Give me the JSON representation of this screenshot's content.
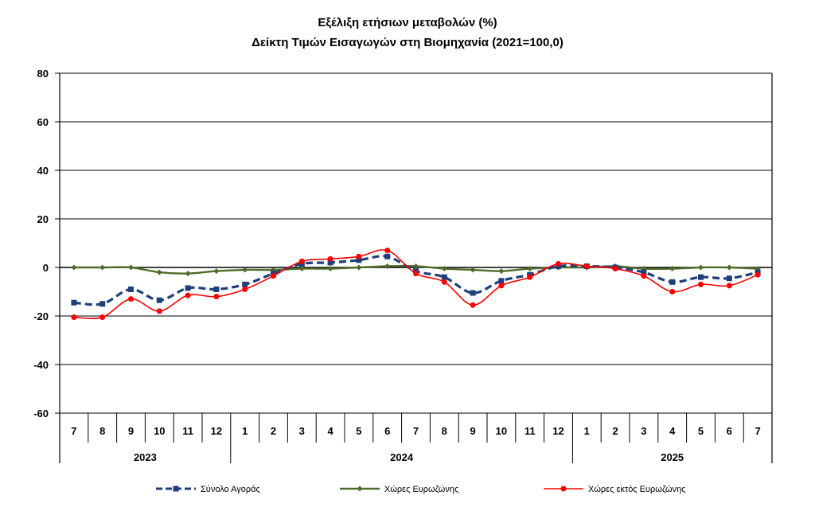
{
  "chart_data": {
    "type": "line",
    "title": "Εξέλιξη ετήσιων μεταβολών (%)",
    "subtitle": "Δείκτη Τιμών Εισαγωγών στη Βιομηχανία (2021=100,0)",
    "ylim": [
      -60,
      80
    ],
    "yticks": [
      80,
      60,
      40,
      20,
      0,
      -20,
      -40,
      -60
    ],
    "grid": true,
    "legend_position": "bottom",
    "categories": [
      "7",
      "8",
      "9",
      "10",
      "11",
      "12",
      "1",
      "2",
      "3",
      "4",
      "5",
      "6",
      "7",
      "8",
      "9",
      "10",
      "11",
      "12",
      "1",
      "2",
      "3",
      "4",
      "5",
      "6",
      "7"
    ],
    "years": [
      {
        "label": "2023",
        "span": 6
      },
      {
        "label": "2024",
        "span": 12
      },
      {
        "label": "2025",
        "span": 7
      }
    ],
    "series": [
      {
        "name": "Σύνολο Αγοράς",
        "color": "#1F3F7A",
        "style": "dashed-square",
        "values": [
          -14.5,
          -15,
          -9,
          -13.5,
          -8.5,
          -9,
          -7,
          -2.5,
          1.5,
          2,
          3,
          4.5,
          -1.5,
          -4,
          -10.5,
          -5.5,
          -3,
          0.5,
          0.5,
          0,
          -2,
          -6,
          -4,
          -4.5,
          -2
        ]
      },
      {
        "name": "Χώρες Ευρωζώνης",
        "color": "#4F6B28",
        "style": "solid-diamond",
        "values": [
          0,
          0,
          0,
          -2,
          -2.5,
          -1.5,
          -1,
          -1,
          -0.5,
          -0.5,
          0,
          0.5,
          0.5,
          -0.5,
          -1,
          -1.5,
          -0.5,
          0,
          0,
          0.5,
          -0.5,
          -0.5,
          0,
          0,
          -0.5
        ]
      },
      {
        "name": "Χώρες εκτός Ευρωζώνης",
        "color": "#FF0000",
        "style": "solid-circle",
        "values": [
          -20.5,
          -20.5,
          -13,
          -18,
          -11.5,
          -12,
          -9,
          -3.5,
          2.5,
          3.5,
          4.5,
          7,
          -2.5,
          -6,
          -15.5,
          -7.5,
          -4,
          1.5,
          0.5,
          -0.5,
          -3.5,
          -10,
          -7,
          -7.5,
          -3
        ]
      }
    ]
  }
}
